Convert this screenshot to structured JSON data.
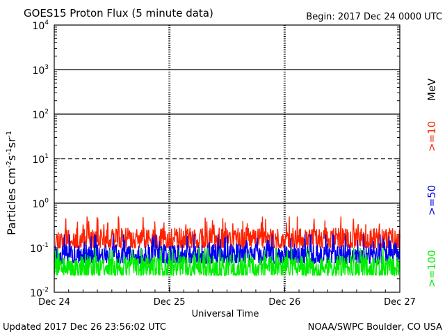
{
  "header": {
    "title": "GOES15 Proton Flux (5 minute data)",
    "begin": "Begin: 2017 Dec 24 0000 UTC"
  },
  "footer": {
    "updated": "Updated 2017 Dec 26 23:56:02 UTC",
    "credit": "NOAA/SWPC Boulder, CO USA"
  },
  "chart_data": {
    "type": "line",
    "title": "GOES15 Proton Flux (5 minute data)",
    "xlabel": "Universal Time",
    "ylabel_main": "Particles cm",
    "ylabel_exp1": "-2",
    "ylabel_mid1": "s",
    "ylabel_exp2": "-1",
    "ylabel_mid2": "sr",
    "ylabel_exp3": "-1",
    "yscale": "log",
    "ylim_exp": [
      -2,
      4
    ],
    "yticks": [
      {
        "base": "10",
        "exp": "-2",
        "value": -2
      },
      {
        "base": "10",
        "exp": "-1",
        "value": -1
      },
      {
        "base": "10",
        "exp": "0",
        "value": 0
      },
      {
        "base": "10",
        "exp": "1",
        "value": 1
      },
      {
        "base": "10",
        "exp": "2",
        "value": 2
      },
      {
        "base": "10",
        "exp": "3",
        "value": 3
      },
      {
        "base": "10",
        "exp": "4",
        "value": 4
      }
    ],
    "xlim_days": [
      0,
      3
    ],
    "xticks": [
      {
        "label": "Dec 24",
        "day": 0
      },
      {
        "label": "Dec 25",
        "day": 1
      },
      {
        "label": "Dec 26",
        "day": 2
      },
      {
        "label": "Dec 27",
        "day": 3
      }
    ],
    "thresholds": [
      {
        "value": 0,
        "style": "solid"
      },
      {
        "value": 1,
        "style": "dashed"
      },
      {
        "value": 2,
        "style": "solid"
      },
      {
        "value": 3,
        "style": "solid"
      }
    ],
    "legend_unit": "MeV",
    "series": [
      {
        "name": ">=10",
        "color": "#ff2200",
        "typical": 0.15,
        "min": 0.1,
        "max": 0.5,
        "seed": 11
      },
      {
        "name": ">=50",
        "color": "#0000ee",
        "typical": 0.065,
        "min": 0.045,
        "max": 0.2,
        "seed": 23
      },
      {
        "name": ">=100",
        "color": "#00ee00",
        "typical": 0.035,
        "min": 0.024,
        "max": 0.1,
        "seed": 37
      }
    ]
  }
}
